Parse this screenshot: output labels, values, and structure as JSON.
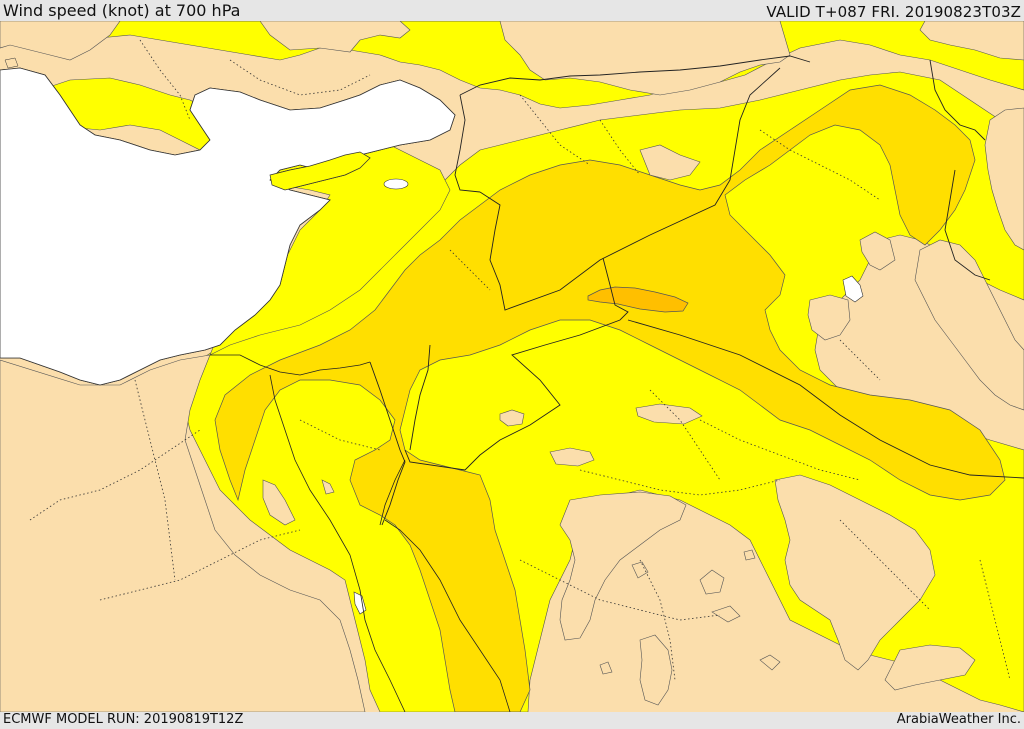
{
  "header": {
    "title": "Wind speed (knot) at 700 hPa",
    "valid": "VALID T+087 FRI. 20190823T03Z"
  },
  "footer": {
    "model_run": "ECMWF MODEL RUN: 20190819T12Z",
    "credit": "ArabiaWeather Inc."
  },
  "colors": {
    "land_low": "#fbdeac",
    "wind_band_1": "#ffff00",
    "wind_band_2": "#ffdf00",
    "wind_band_3": "#ffbf00",
    "sea": "#ffffff",
    "background": "#e6e6e6"
  }
}
